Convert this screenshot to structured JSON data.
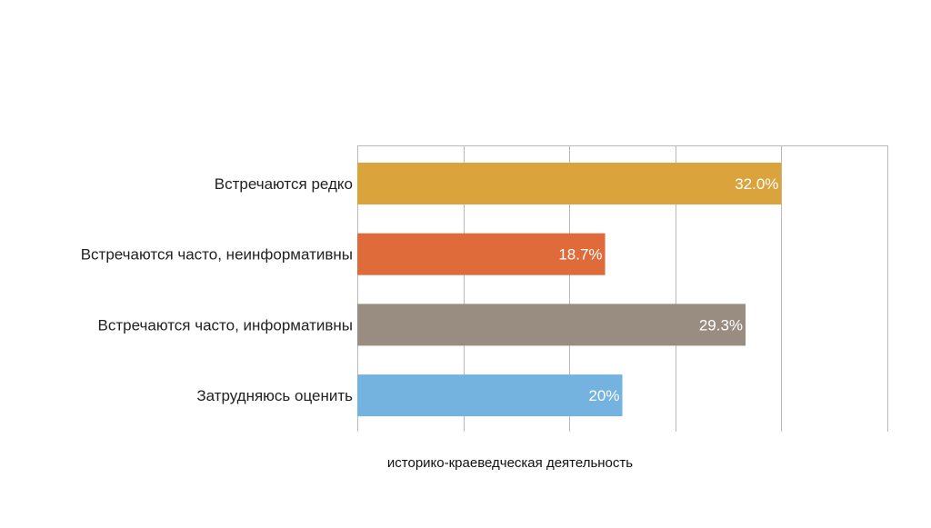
{
  "chart_data": {
    "type": "bar",
    "orientation": "horizontal",
    "categories": [
      "Встречаются редко",
      "Встречаются часто, неинформативны",
      "Встречаются часто, информативны",
      "Затрудняюсь оценить"
    ],
    "values": [
      32.0,
      18.7,
      29.3,
      20
    ],
    "data_labels": [
      "32.0%",
      "18.7%",
      "29.3%",
      "20%"
    ],
    "colors": [
      "#dba33b",
      "#df6b3a",
      "#998d82",
      "#74b3e0"
    ],
    "xlabel": "историко-краеведческая деятельность",
    "xlim": [
      0,
      40
    ],
    "x_grid_step": 8,
    "grid": true,
    "legend": "none"
  }
}
